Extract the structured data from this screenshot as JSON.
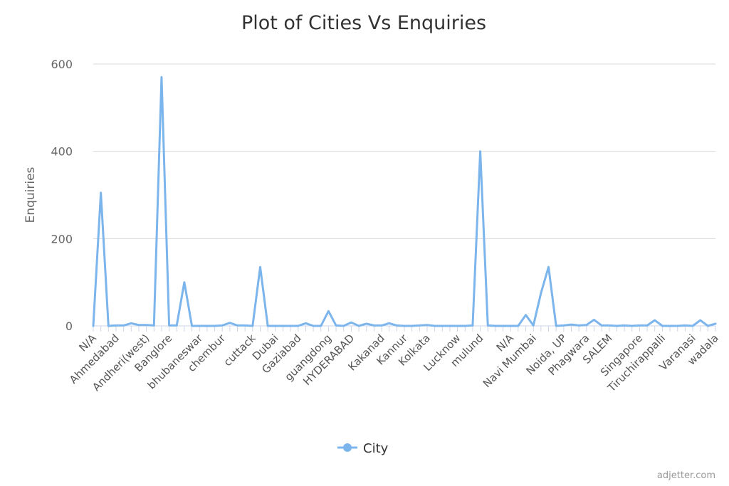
{
  "credit": "adjetter.com",
  "chart_data": {
    "type": "line",
    "title": "Plot of Cities Vs Enquiries",
    "xlabel": "",
    "ylabel": "Enquiries",
    "ylim": [
      0,
      600
    ],
    "yticks": [
      0,
      200,
      400,
      600
    ],
    "grid": true,
    "legend_position": "bottom",
    "color": "#7cb5ec",
    "x_tick_labels": [
      "N/A",
      "Ahmedabad",
      "Andheri(west)",
      "Banglore",
      "bhubaneswar",
      "chembur",
      "cuttack",
      "Dubai",
      "Gaziabad",
      "guangdong",
      "HYDERABAD",
      "Kakanad",
      "Kannur",
      "Kolkata",
      "Lucknow",
      "mulund",
      "N/A",
      "Navi Mumbai",
      "Noida, UP",
      "Phagwara",
      "SALEM",
      "Singapore",
      "Tiruchirappalli",
      "Varanasi",
      "wadala"
    ],
    "series": [
      {
        "name": "City",
        "values": [
          0,
          305,
          0,
          1,
          1,
          6,
          2,
          2,
          1,
          570,
          1,
          1,
          100,
          0,
          0,
          0,
          0,
          1,
          7,
          1,
          1,
          0,
          135,
          0,
          0,
          0,
          0,
          0,
          6,
          0,
          0,
          34,
          1,
          0,
          8,
          0,
          5,
          1,
          1,
          6,
          1,
          0,
          0,
          1,
          2,
          0,
          0,
          0,
          0,
          0,
          1,
          400,
          1,
          0,
          0,
          0,
          0,
          25,
          1,
          75,
          135,
          0,
          1,
          3,
          1,
          2,
          14,
          1,
          1,
          0,
          1,
          0,
          1,
          1,
          13,
          0,
          0,
          0,
          1,
          0,
          13,
          0,
          5
        ]
      }
    ]
  }
}
